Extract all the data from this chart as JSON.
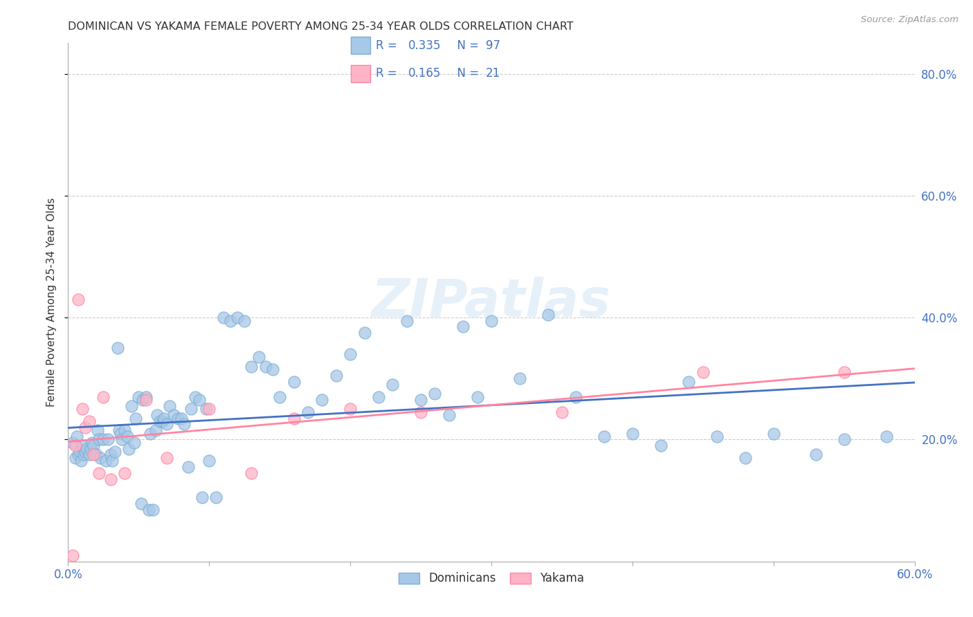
{
  "title": "DOMINICAN VS YAKAMA FEMALE POVERTY AMONG 25-34 YEAR OLDS CORRELATION CHART",
  "source": "Source: ZipAtlas.com",
  "ylabel": "Female Poverty Among 25-34 Year Olds",
  "xlim": [
    0.0,
    0.6
  ],
  "ylim": [
    0.0,
    0.85
  ],
  "dominicans_color": "#A8C8E8",
  "dominicans_edge": "#7BAFD4",
  "yakama_color": "#FFB3C6",
  "yakama_edge": "#FF85A1",
  "trend_dominicans_color": "#4472C4",
  "trend_yakama_color": "#FF85A1",
  "legend_text_color": "#4472C4",
  "R_dominicans": 0.335,
  "N_dominicans": 97,
  "R_yakama": 0.165,
  "N_yakama": 21,
  "legend_label_dominicans": "Dominicans",
  "legend_label_yakama": "Yakama",
  "background_color": "#FFFFFF",
  "watermark": "ZIPatlas",
  "grid_color": "#CCCCCC",
  "title_color": "#333333",
  "source_color": "#999999",
  "right_tick_color": "#4472C4",
  "dominicans_x": [
    0.003,
    0.005,
    0.006,
    0.007,
    0.008,
    0.009,
    0.01,
    0.011,
    0.012,
    0.013,
    0.015,
    0.016,
    0.017,
    0.018,
    0.02,
    0.021,
    0.022,
    0.023,
    0.025,
    0.027,
    0.028,
    0.03,
    0.031,
    0.033,
    0.035,
    0.036,
    0.037,
    0.038,
    0.04,
    0.042,
    0.043,
    0.045,
    0.047,
    0.048,
    0.05,
    0.052,
    0.053,
    0.055,
    0.057,
    0.058,
    0.06,
    0.062,
    0.063,
    0.065,
    0.067,
    0.068,
    0.07,
    0.072,
    0.075,
    0.078,
    0.08,
    0.082,
    0.085,
    0.087,
    0.09,
    0.093,
    0.095,
    0.098,
    0.1,
    0.105,
    0.11,
    0.115,
    0.12,
    0.125,
    0.13,
    0.135,
    0.14,
    0.145,
    0.15,
    0.16,
    0.17,
    0.18,
    0.19,
    0.2,
    0.21,
    0.22,
    0.23,
    0.24,
    0.25,
    0.26,
    0.27,
    0.28,
    0.29,
    0.3,
    0.32,
    0.34,
    0.36,
    0.38,
    0.4,
    0.42,
    0.44,
    0.46,
    0.48,
    0.5,
    0.53,
    0.55,
    0.58
  ],
  "dominicans_y": [
    0.195,
    0.17,
    0.205,
    0.175,
    0.18,
    0.165,
    0.19,
    0.175,
    0.18,
    0.185,
    0.175,
    0.185,
    0.195,
    0.19,
    0.175,
    0.215,
    0.2,
    0.17,
    0.2,
    0.165,
    0.2,
    0.175,
    0.165,
    0.18,
    0.35,
    0.215,
    0.21,
    0.2,
    0.215,
    0.205,
    0.185,
    0.255,
    0.195,
    0.235,
    0.27,
    0.095,
    0.265,
    0.27,
    0.085,
    0.21,
    0.085,
    0.215,
    0.24,
    0.23,
    0.23,
    0.235,
    0.225,
    0.255,
    0.24,
    0.235,
    0.235,
    0.225,
    0.155,
    0.25,
    0.27,
    0.265,
    0.105,
    0.25,
    0.165,
    0.105,
    0.4,
    0.395,
    0.4,
    0.395,
    0.32,
    0.335,
    0.32,
    0.315,
    0.27,
    0.295,
    0.245,
    0.265,
    0.305,
    0.34,
    0.375,
    0.27,
    0.29,
    0.395,
    0.265,
    0.275,
    0.24,
    0.385,
    0.27,
    0.395,
    0.3,
    0.405,
    0.27,
    0.205,
    0.21,
    0.19,
    0.295,
    0.205,
    0.17,
    0.21,
    0.175,
    0.2,
    0.205
  ],
  "yakama_x": [
    0.003,
    0.005,
    0.007,
    0.01,
    0.012,
    0.015,
    0.018,
    0.022,
    0.025,
    0.03,
    0.04,
    0.055,
    0.07,
    0.1,
    0.13,
    0.16,
    0.2,
    0.25,
    0.35,
    0.45,
    0.55
  ],
  "yakama_y": [
    0.01,
    0.19,
    0.43,
    0.25,
    0.22,
    0.23,
    0.175,
    0.145,
    0.27,
    0.135,
    0.145,
    0.265,
    0.17,
    0.25,
    0.145,
    0.235,
    0.25,
    0.245,
    0.245,
    0.31,
    0.31
  ]
}
